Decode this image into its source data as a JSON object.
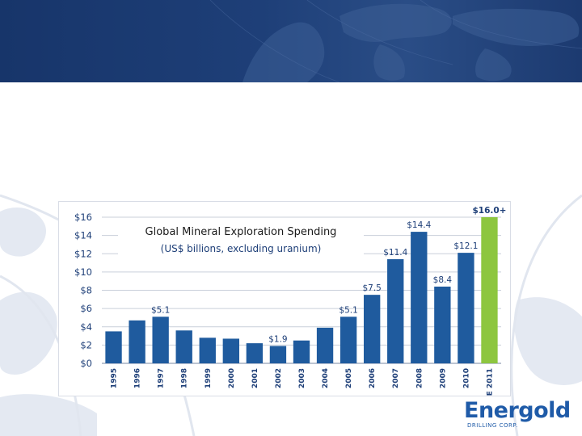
{
  "brand": {
    "name": "Energold",
    "tagline": "DRILLING CORP."
  },
  "colors": {
    "banner": "#1e3f78",
    "bar": "#1f5b9e",
    "bar_estimate": "#8dc63f",
    "estimate_label": "#8dc63f",
    "text": "#1e3f78"
  },
  "chart_data": {
    "type": "bar",
    "title": "Global Mineral Exploration Spending",
    "subtitle": "(US$ billions, excluding uranium)",
    "categories": [
      "1995",
      "1996",
      "1997",
      "1998",
      "1999",
      "2000",
      "2001",
      "2002",
      "2003",
      "2004",
      "2005",
      "2006",
      "2007",
      "2008",
      "2009",
      "2010",
      "E 2011"
    ],
    "values": [
      3.5,
      4.7,
      5.1,
      3.6,
      2.8,
      2.7,
      2.2,
      1.9,
      2.5,
      3.9,
      5.1,
      7.5,
      11.4,
      14.4,
      8.4,
      12.1,
      16.0
    ],
    "data_labels": [
      "",
      "",
      "$5.1",
      "",
      "",
      "",
      "",
      "$1.9",
      "",
      "",
      "$5.1",
      "$7.5",
      "$11.4",
      "$14.4",
      "$8.4",
      "$12.1",
      "$16.0+"
    ],
    "highlight_index": 16,
    "ylim": [
      0,
      16
    ],
    "yticks": [
      "$0",
      "$2",
      "$4",
      "$6",
      "$8",
      "$10",
      "$12",
      "$14",
      "$16"
    ],
    "grid": true,
    "xlabel": "",
    "ylabel": ""
  }
}
